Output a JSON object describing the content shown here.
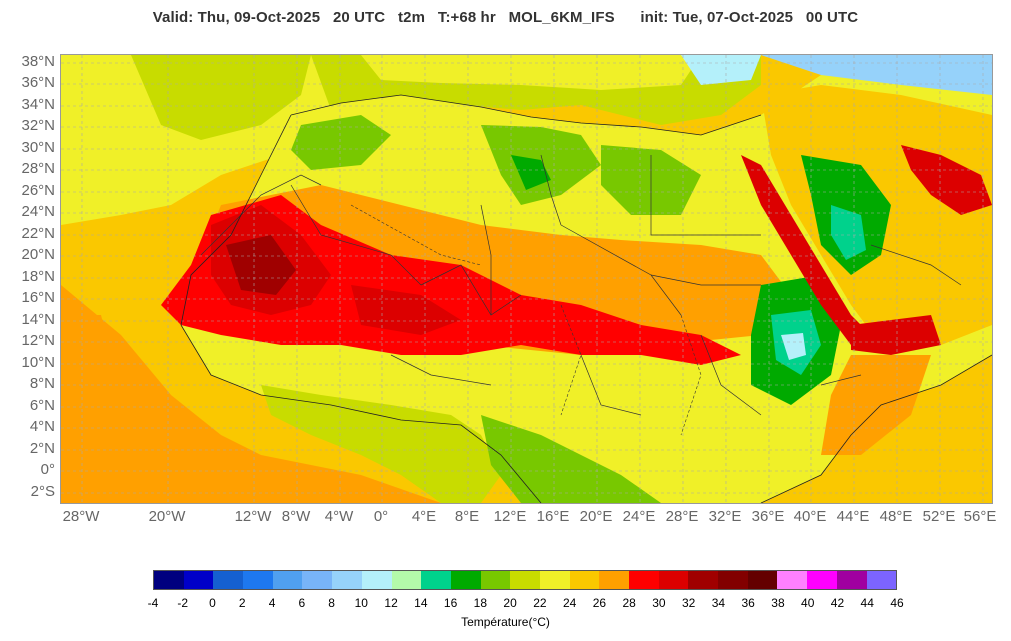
{
  "header": {
    "valid_label": "Valid: Thu, 09-Oct-2025",
    "valid_hour": "20 UTC",
    "variable": "t2m",
    "lead": "T:+68 hr",
    "model": "MOL_6KM_IFS",
    "init": "init: Tue, 07-Oct-2025   00 UTC"
  },
  "lat_labels": [
    "38°N",
    "36°N",
    "34°N",
    "32°N",
    "30°N",
    "28°N",
    "26°N",
    "24°N",
    "22°N",
    "20°N",
    "18°N",
    "16°N",
    "14°N",
    "12°N",
    "10°N",
    "8°N",
    "6°N",
    "4°N",
    "2°N",
    "0°",
    "2°S"
  ],
  "lon_labels": [
    "28°W",
    "20°W",
    "12°W",
    "8°W",
    "4°W",
    "0°",
    "4°E",
    "8°E",
    "12°E",
    "16°E",
    "20°E",
    "24°E",
    "28°E",
    "32°E",
    "36°E",
    "40°E",
    "44°E",
    "48°E",
    "52°E",
    "56°E"
  ],
  "colorbar": {
    "title": "Température(°C)",
    "colors": [
      "#00007f",
      "#0000c8",
      "#1560d0",
      "#1e78ef",
      "#50a0f0",
      "#78b4f8",
      "#96d2fa",
      "#b4f0fa",
      "#b4faaa",
      "#00d28c",
      "#00aa00",
      "#78c800",
      "#c8dc00",
      "#f0f028",
      "#fac800",
      "#ffa000",
      "#ff0000",
      "#dc0000",
      "#a00000",
      "#820000",
      "#640000",
      "#ff80ff",
      "#ff00ff",
      "#a000a0",
      "#7c64ff"
    ],
    "ticks": [
      "-4",
      "-2",
      "0",
      "2",
      "4",
      "6",
      "8",
      "10",
      "12",
      "14",
      "16",
      "18",
      "20",
      "22",
      "24",
      "26",
      "28",
      "30",
      "32",
      "34",
      "36",
      "38",
      "40",
      "42",
      "44",
      "46"
    ]
  },
  "map": {
    "ocean_color": "#ffa000",
    "field_colors": {
      "warm_ocean": "#fac800",
      "yellow": "#f0f028",
      "lime": "#c8dc00",
      "green": "#78c800",
      "dark_green": "#00aa00",
      "teal": "#00d28c",
      "light_cyan": "#b4f0fa",
      "sky": "#96d2fa",
      "red": "#ff0000",
      "dark_red": "#dc0000",
      "maroon": "#a00000"
    }
  }
}
